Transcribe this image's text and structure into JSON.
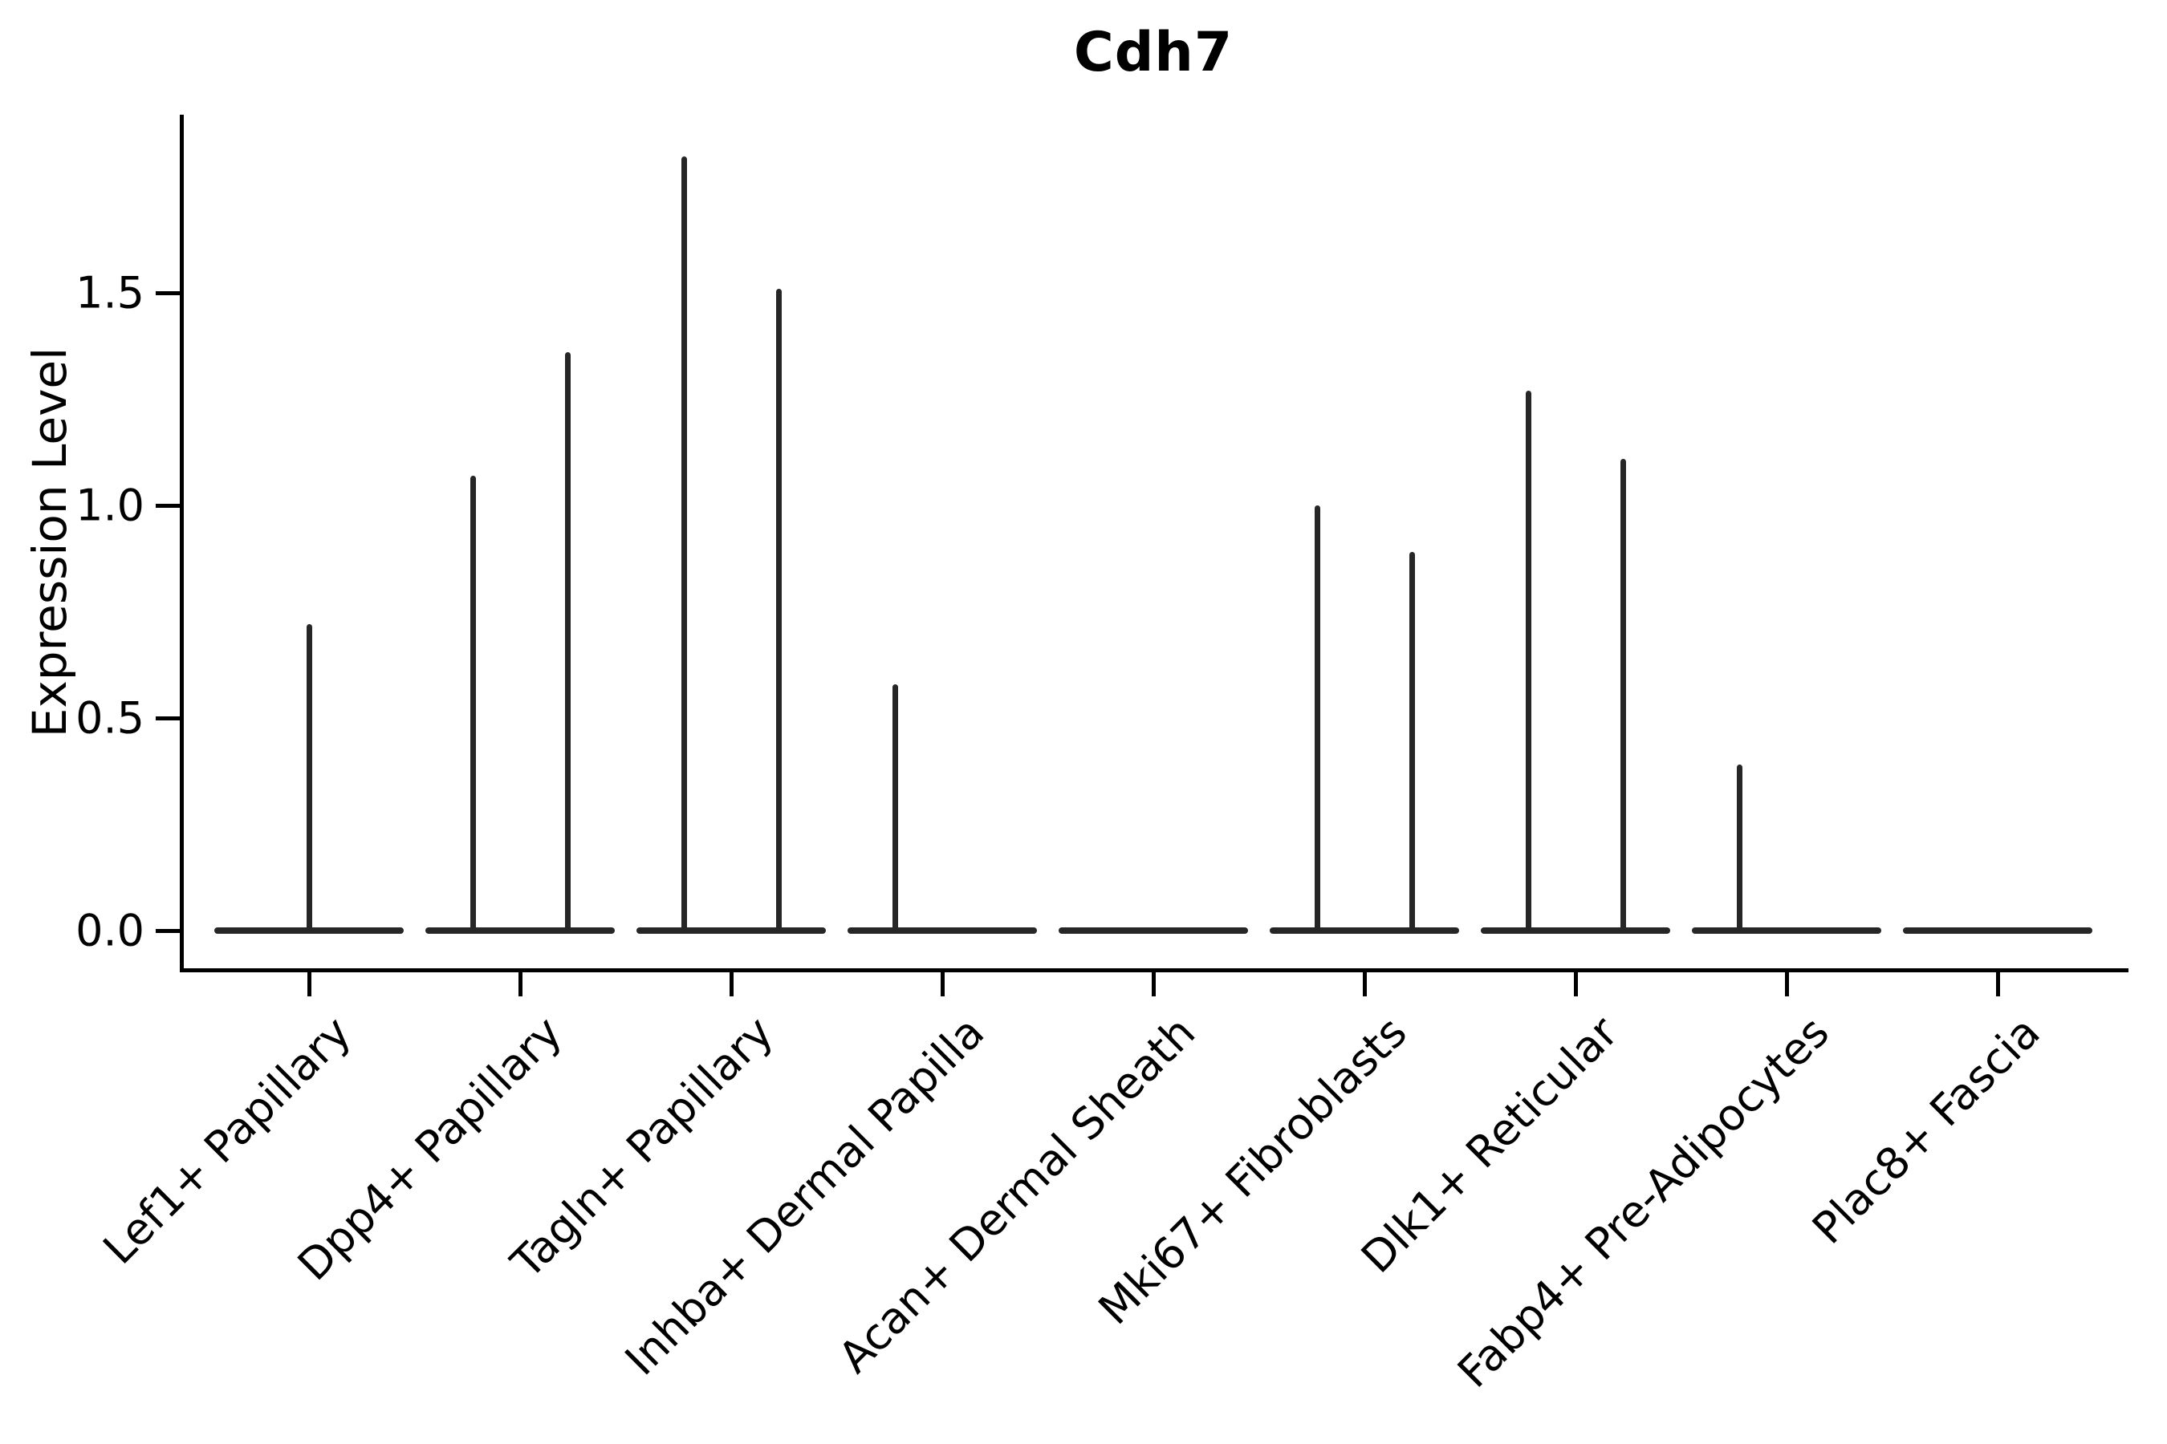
{
  "title": "Cdh7",
  "chart_data": {
    "type": "violin",
    "title": "Cdh7",
    "xlabel": "",
    "ylabel": "Expression Level",
    "categories": [
      "Lef1+ Papillary",
      "Dpp4+ Papillary",
      "Tagln+ Papillary",
      "Inhba+ Dermal Papilla",
      "Acan+ Dermal Sheath",
      "Mki67+ Fibroblasts",
      "Dlk1+ Reticular",
      "Fabp4+ Pre-Adipocytes",
      "Plac8+ Fascia"
    ],
    "yticks": [
      0.0,
      0.5,
      1.0,
      1.5
    ],
    "ytick_labels": [
      "0.0",
      "0.5",
      "1.0",
      "1.5"
    ],
    "ylim": [
      -0.09,
      1.92
    ],
    "grid": false,
    "legend": null,
    "description": "Violin plot of Cdh7 expression; each cluster shows a flat density body at 0 with thin spikes rising to the maximum expressed values.",
    "violins": [
      {
        "category": "Lef1+ Papillary",
        "baseline_value": 0,
        "spikes": [
          {
            "position": "center",
            "max": 0.72
          }
        ]
      },
      {
        "category": "Dpp4+ Papillary",
        "baseline_value": 0,
        "spikes": [
          {
            "position": "left",
            "max": 1.07
          },
          {
            "position": "right",
            "max": 1.36
          }
        ]
      },
      {
        "category": "Tagln+ Papillary",
        "baseline_value": 0,
        "spikes": [
          {
            "position": "left",
            "max": 1.82
          },
          {
            "position": "right",
            "max": 1.51
          }
        ]
      },
      {
        "category": "Inhba+ Dermal Papilla",
        "baseline_value": 0,
        "spikes": [
          {
            "position": "left",
            "max": 0.58
          }
        ]
      },
      {
        "category": "Acan+ Dermal Sheath",
        "baseline_value": 0,
        "spikes": []
      },
      {
        "category": "Mki67+ Fibroblasts",
        "baseline_value": 0,
        "spikes": [
          {
            "position": "left",
            "max": 1.0
          },
          {
            "position": "right",
            "max": 0.89
          }
        ]
      },
      {
        "category": "Dlk1+ Reticular",
        "baseline_value": 0,
        "spikes": [
          {
            "position": "left",
            "max": 1.27
          },
          {
            "position": "right",
            "max": 1.11
          }
        ]
      },
      {
        "category": "Fabp4+ Pre-Adipocytes",
        "baseline_value": 0,
        "spikes": [
          {
            "position": "left",
            "max": 0.39
          }
        ]
      },
      {
        "category": "Plac8+ Fascia",
        "baseline_value": 0,
        "spikes": []
      }
    ],
    "style": {
      "violin_color": "#262626",
      "axis_color": "#000000",
      "background": "#ffffff"
    }
  }
}
